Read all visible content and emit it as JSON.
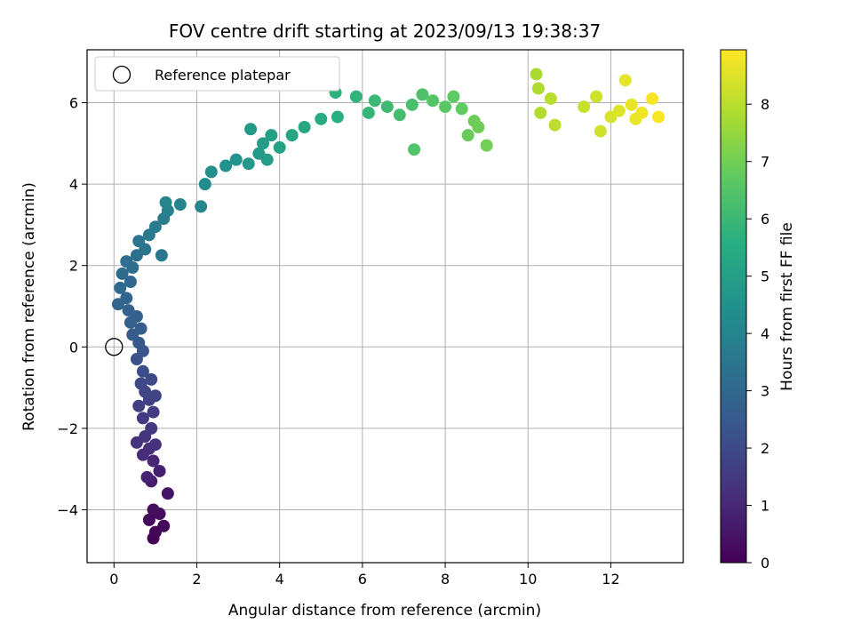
{
  "chart_data": {
    "type": "scatter",
    "title": "FOV centre drift starting at 2023/09/13 19:38:37",
    "xlabel": "Angular distance from reference (arcmin)",
    "ylabel": "Rotation from reference (arcmin)",
    "xlim": [
      -0.65,
      13.75
    ],
    "ylim": [
      -5.3,
      7.3
    ],
    "xticks": [
      0,
      2,
      4,
      6,
      8,
      10,
      12
    ],
    "yticks": [
      -4,
      -2,
      0,
      2,
      4,
      6
    ],
    "xtick_labels": [
      "0",
      "2",
      "4",
      "6",
      "8",
      "10",
      "12"
    ],
    "ytick_labels": [
      "−4",
      "−2",
      "0",
      "2",
      "4",
      "6"
    ],
    "grid": true,
    "legend": {
      "placement": "upper-left",
      "entries": [
        "Reference platepar"
      ]
    },
    "reference_point": {
      "x": 0,
      "y": 0
    },
    "colorbar": {
      "label": "Hours from first FF file",
      "colormap": "viridis",
      "range": [
        0,
        8.95
      ],
      "ticks": [
        0,
        1,
        2,
        3,
        4,
        5,
        6,
        7,
        8
      ],
      "tick_labels": [
        "0",
        "1",
        "2",
        "3",
        "4",
        "5",
        "6",
        "7",
        "8"
      ]
    },
    "series": [
      {
        "points": [
          {
            "x": 0.95,
            "y": -4.7,
            "h": 0.05
          },
          {
            "x": 1.0,
            "y": -4.55,
            "h": 0.1
          },
          {
            "x": 1.2,
            "y": -4.4,
            "h": 0.15
          },
          {
            "x": 0.85,
            "y": -4.25,
            "h": 0.2
          },
          {
            "x": 1.1,
            "y": -4.1,
            "h": 0.25
          },
          {
            "x": 0.95,
            "y": -4.0,
            "h": 0.3
          },
          {
            "x": 1.3,
            "y": -3.6,
            "h": 0.5
          },
          {
            "x": 0.9,
            "y": -3.3,
            "h": 0.7
          },
          {
            "x": 1.1,
            "y": -3.05,
            "h": 0.8
          },
          {
            "x": 0.8,
            "y": -3.2,
            "h": 0.85
          },
          {
            "x": 0.95,
            "y": -2.8,
            "h": 1.0
          },
          {
            "x": 0.7,
            "y": -2.65,
            "h": 1.1
          },
          {
            "x": 0.85,
            "y": -2.5,
            "h": 1.2
          },
          {
            "x": 1.0,
            "y": -2.4,
            "h": 1.25
          },
          {
            "x": 0.55,
            "y": -2.35,
            "h": 1.3
          },
          {
            "x": 0.75,
            "y": -2.2,
            "h": 1.35
          },
          {
            "x": 0.9,
            "y": -2.0,
            "h": 1.45
          },
          {
            "x": 0.7,
            "y": -1.75,
            "h": 1.55
          },
          {
            "x": 0.95,
            "y": -1.6,
            "h": 1.6
          },
          {
            "x": 0.6,
            "y": -1.45,
            "h": 1.7
          },
          {
            "x": 0.85,
            "y": -1.3,
            "h": 1.75
          },
          {
            "x": 0.75,
            "y": -1.1,
            "h": 1.85
          },
          {
            "x": 1.0,
            "y": -1.2,
            "h": 1.8
          },
          {
            "x": 0.65,
            "y": -0.9,
            "h": 1.95
          },
          {
            "x": 0.9,
            "y": -0.8,
            "h": 2.0
          },
          {
            "x": 0.7,
            "y": -0.6,
            "h": 2.1
          },
          {
            "x": 0.55,
            "y": -0.3,
            "h": 2.25
          },
          {
            "x": 0.7,
            "y": -0.1,
            "h": 2.35
          },
          {
            "x": 0.6,
            "y": 0.1,
            "h": 2.45
          },
          {
            "x": 0.45,
            "y": 0.3,
            "h": 2.55
          },
          {
            "x": 0.65,
            "y": 0.45,
            "h": 2.6
          },
          {
            "x": 0.4,
            "y": 0.6,
            "h": 2.7
          },
          {
            "x": 0.55,
            "y": 0.75,
            "h": 2.75
          },
          {
            "x": 0.35,
            "y": 0.9,
            "h": 2.8
          },
          {
            "x": 0.1,
            "y": 1.05,
            "h": 2.85
          },
          {
            "x": 0.3,
            "y": 1.2,
            "h": 2.9
          },
          {
            "x": 0.15,
            "y": 1.45,
            "h": 3.0
          },
          {
            "x": 0.4,
            "y": 1.6,
            "h": 3.05
          },
          {
            "x": 0.2,
            "y": 1.8,
            "h": 3.1
          },
          {
            "x": 0.45,
            "y": 1.95,
            "h": 3.15
          },
          {
            "x": 0.3,
            "y": 2.1,
            "h": 3.2
          },
          {
            "x": 0.55,
            "y": 2.25,
            "h": 3.3
          },
          {
            "x": 0.75,
            "y": 2.4,
            "h": 3.4
          },
          {
            "x": 0.6,
            "y": 2.6,
            "h": 3.5
          },
          {
            "x": 0.85,
            "y": 2.75,
            "h": 3.6
          },
          {
            "x": 1.15,
            "y": 2.25,
            "h": 3.55
          },
          {
            "x": 1.0,
            "y": 2.95,
            "h": 3.7
          },
          {
            "x": 1.2,
            "y": 3.15,
            "h": 3.8
          },
          {
            "x": 1.3,
            "y": 3.35,
            "h": 3.9
          },
          {
            "x": 1.25,
            "y": 3.55,
            "h": 4.0
          },
          {
            "x": 1.6,
            "y": 3.5,
            "h": 4.05
          },
          {
            "x": 2.1,
            "y": 3.45,
            "h": 4.1
          },
          {
            "x": 2.2,
            "y": 4.0,
            "h": 4.3
          },
          {
            "x": 2.35,
            "y": 4.3,
            "h": 4.4
          },
          {
            "x": 2.7,
            "y": 4.45,
            "h": 4.5
          },
          {
            "x": 2.95,
            "y": 4.6,
            "h": 4.6
          },
          {
            "x": 3.25,
            "y": 4.5,
            "h": 4.7
          },
          {
            "x": 3.5,
            "y": 4.75,
            "h": 4.8
          },
          {
            "x": 3.3,
            "y": 5.35,
            "h": 4.85
          },
          {
            "x": 3.6,
            "y": 5.0,
            "h": 4.9
          },
          {
            "x": 3.8,
            "y": 5.2,
            "h": 5.0
          },
          {
            "x": 3.7,
            "y": 4.6,
            "h": 4.95
          },
          {
            "x": 4.0,
            "y": 4.9,
            "h": 5.1
          },
          {
            "x": 4.3,
            "y": 5.2,
            "h": 5.2
          },
          {
            "x": 4.6,
            "y": 5.4,
            "h": 5.35
          },
          {
            "x": 5.0,
            "y": 5.6,
            "h": 5.5
          },
          {
            "x": 5.4,
            "y": 5.65,
            "h": 5.6
          },
          {
            "x": 5.35,
            "y": 6.25,
            "h": 5.7
          },
          {
            "x": 5.85,
            "y": 6.15,
            "h": 5.8
          },
          {
            "x": 6.15,
            "y": 5.75,
            "h": 5.9
          },
          {
            "x": 6.3,
            "y": 6.05,
            "h": 6.0
          },
          {
            "x": 6.6,
            "y": 5.9,
            "h": 6.1
          },
          {
            "x": 6.9,
            "y": 5.7,
            "h": 6.2
          },
          {
            "x": 7.2,
            "y": 5.95,
            "h": 6.3
          },
          {
            "x": 7.45,
            "y": 6.2,
            "h": 6.4
          },
          {
            "x": 7.25,
            "y": 4.85,
            "h": 6.45
          },
          {
            "x": 7.7,
            "y": 6.05,
            "h": 6.5
          },
          {
            "x": 8.0,
            "y": 5.9,
            "h": 6.6
          },
          {
            "x": 8.2,
            "y": 6.15,
            "h": 6.7
          },
          {
            "x": 8.4,
            "y": 5.85,
            "h": 6.75
          },
          {
            "x": 8.55,
            "y": 5.2,
            "h": 6.85
          },
          {
            "x": 8.7,
            "y": 5.55,
            "h": 6.9
          },
          {
            "x": 9.0,
            "y": 4.95,
            "h": 7.0
          },
          {
            "x": 8.8,
            "y": 5.4,
            "h": 6.95
          },
          {
            "x": 10.2,
            "y": 6.7,
            "h": 7.8
          },
          {
            "x": 10.25,
            "y": 6.35,
            "h": 7.85
          },
          {
            "x": 10.3,
            "y": 5.75,
            "h": 7.9
          },
          {
            "x": 10.55,
            "y": 6.1,
            "h": 8.0
          },
          {
            "x": 10.65,
            "y": 5.45,
            "h": 8.05
          },
          {
            "x": 11.35,
            "y": 5.9,
            "h": 8.2
          },
          {
            "x": 11.65,
            "y": 6.15,
            "h": 8.3
          },
          {
            "x": 11.75,
            "y": 5.3,
            "h": 8.35
          },
          {
            "x": 12.0,
            "y": 5.65,
            "h": 8.45
          },
          {
            "x": 12.2,
            "y": 5.8,
            "h": 8.5
          },
          {
            "x": 12.35,
            "y": 6.55,
            "h": 8.6
          },
          {
            "x": 12.5,
            "y": 5.95,
            "h": 8.65
          },
          {
            "x": 12.6,
            "y": 5.6,
            "h": 8.7
          },
          {
            "x": 12.75,
            "y": 5.75,
            "h": 8.75
          },
          {
            "x": 13.0,
            "y": 6.1,
            "h": 8.85
          },
          {
            "x": 13.15,
            "y": 5.65,
            "h": 8.9
          }
        ]
      }
    ]
  },
  "colors": {
    "axis": "#000000",
    "grid": "#b0b0b0",
    "background": "#ffffff"
  }
}
